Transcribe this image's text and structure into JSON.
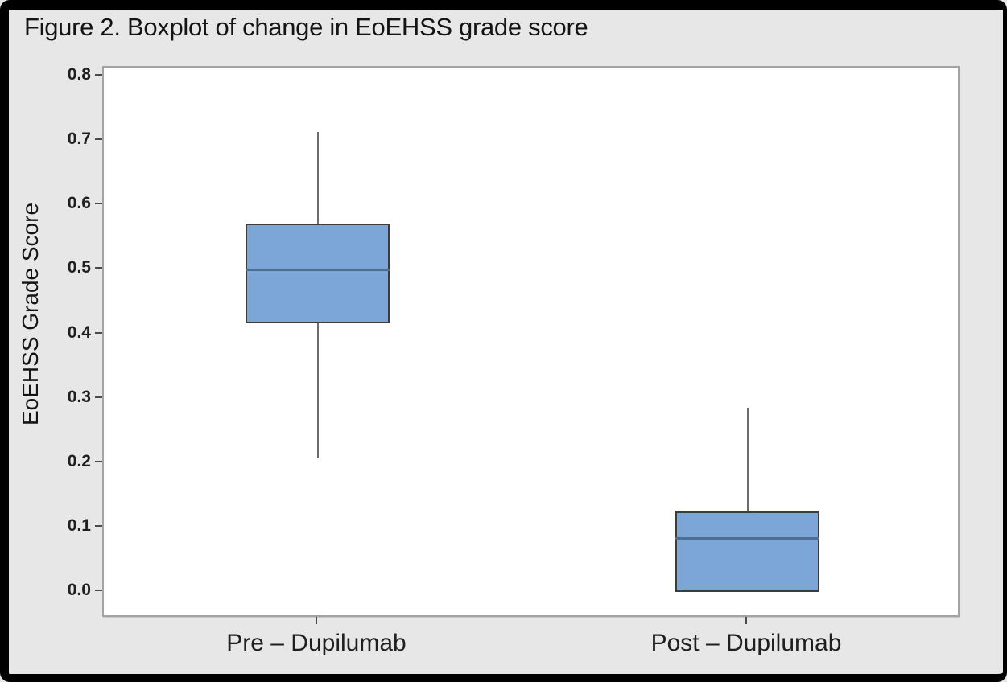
{
  "window": {
    "title": "Figure 2. Boxplot of change in EoEHSS grade score"
  },
  "chart_data": {
    "type": "boxplot",
    "title": "Figure 2. Boxplot of change in EoEHSS grade score",
    "ylabel": "EoEHSS Grade Score",
    "xlabel": "",
    "ylim": [
      0.0,
      0.8
    ],
    "yticks": [
      0.8,
      0.7,
      0.6,
      0.5,
      0.4,
      0.3,
      0.2,
      0.1,
      0.0
    ],
    "ytick_labels": [
      "0.8",
      "0.7",
      "0.6",
      "0.5",
      "0.4",
      "0.3",
      "0.2",
      "0.1",
      "0.0"
    ],
    "grid": false,
    "legend_position": "none",
    "categories": [
      "Pre – Dupilumab",
      "Post – Dupilumab"
    ],
    "series": [
      {
        "name": "Pre – Dupilumab",
        "whisker_low": 0.208,
        "q1": 0.417,
        "median": 0.5,
        "q3": 0.571,
        "whisker_high": 0.714
      },
      {
        "name": "Post – Dupilumab",
        "whisker_low": 0.0,
        "q1": 0.0,
        "median": 0.083,
        "q3": 0.125,
        "whisker_high": 0.286
      }
    ],
    "colors": {
      "box_fill": "#7BA6D7",
      "box_border": "#3C3C3C",
      "median": "#4F6E90",
      "whisker": "#6B6B6B",
      "tick": "#4A4A4A",
      "text": "#1F1F1F",
      "plot_bg": "#FFFFFF",
      "plot_border": "#A3A3A3",
      "page_bg": "#E7E7E7",
      "frame": "#000000"
    }
  }
}
